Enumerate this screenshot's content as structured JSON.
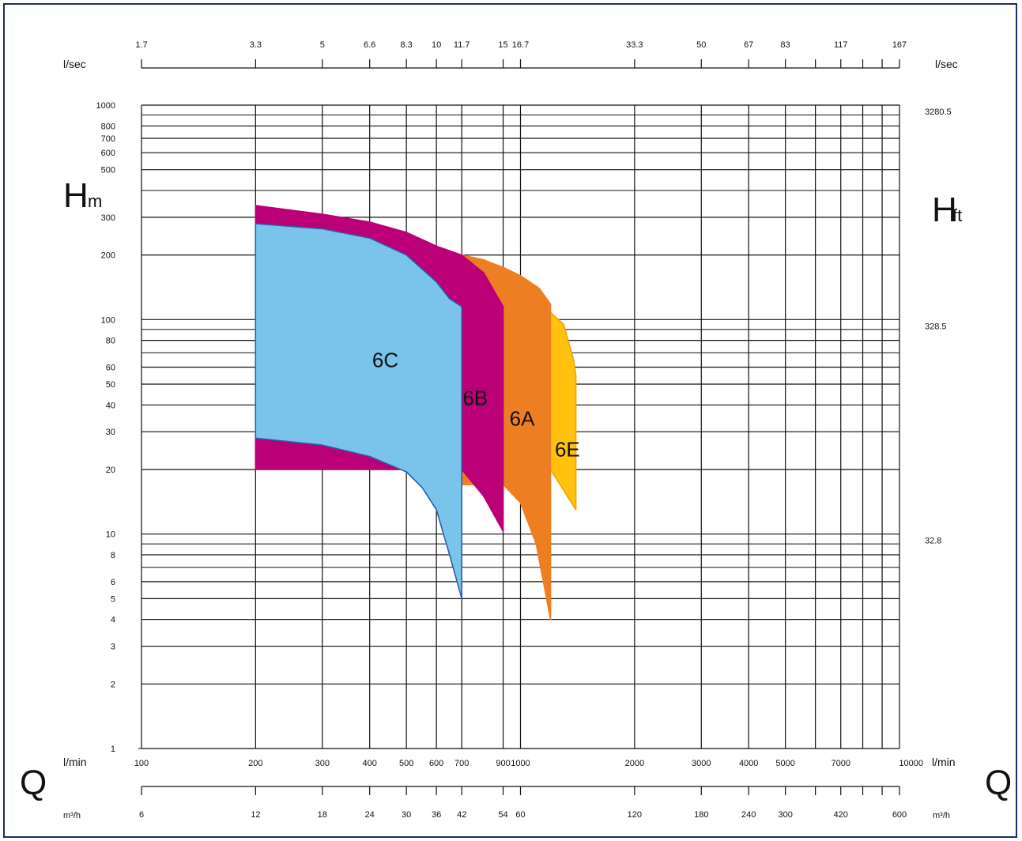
{
  "chart_data": {
    "type": "area",
    "x_scale": "log",
    "y_scale": "log",
    "xlim": [
      100,
      10000
    ],
    "ylim": [
      1,
      1000
    ],
    "grid": true,
    "x_tick_labels": [
      "100",
      "200",
      "300",
      "400",
      "500",
      "600",
      "700",
      "900",
      "1000",
      "2000",
      "3000",
      "4000",
      "5000",
      "7000",
      "10000"
    ],
    "y_tick_labels": [
      "1",
      "2",
      "3",
      "4",
      "5",
      "6",
      "8",
      "10",
      "20",
      "30",
      "40",
      "50",
      "60",
      "80",
      "100",
      "200",
      "300",
      "500",
      "600",
      "700",
      "800",
      "1000"
    ],
    "top_axis": {
      "unit": "l/sec",
      "ticks": [
        {
          "at": 100,
          "label": "1.7"
        },
        {
          "at": 200,
          "label": "3.3"
        },
        {
          "at": 300,
          "label": "5"
        },
        {
          "at": 400,
          "label": "6.6"
        },
        {
          "at": 500,
          "label": "8.3"
        },
        {
          "at": 600,
          "label": "10"
        },
        {
          "at": 700,
          "label": "11.7"
        },
        {
          "at": 900,
          "label": "15"
        },
        {
          "at": 1000,
          "label": "16.7"
        },
        {
          "at": 2000,
          "label": "33.3"
        },
        {
          "at": 3000,
          "label": "50"
        },
        {
          "at": 4000,
          "label": "67"
        },
        {
          "at": 5000,
          "label": "83"
        },
        {
          "at": 6000,
          "label": ""
        },
        {
          "at": 7000,
          "label": "117"
        },
        {
          "at": 8000,
          "label": ""
        },
        {
          "at": 9000,
          "label": ""
        },
        {
          "at": 10000,
          "label": "167"
        }
      ]
    },
    "bottom_axis2": {
      "unit": "m3/h",
      "ticks": [
        {
          "at": 100,
          "label": "6"
        },
        {
          "at": 200,
          "label": "12"
        },
        {
          "at": 300,
          "label": "18"
        },
        {
          "at": 400,
          "label": "24"
        },
        {
          "at": 500,
          "label": "30"
        },
        {
          "at": 600,
          "label": "36"
        },
        {
          "at": 700,
          "label": "42"
        },
        {
          "at": 900,
          "label": "54"
        },
        {
          "at": 1000,
          "label": "60"
        },
        {
          "at": 2000,
          "label": "120"
        },
        {
          "at": 3000,
          "label": "180"
        },
        {
          "at": 4000,
          "label": "240"
        },
        {
          "at": 5000,
          "label": "300"
        },
        {
          "at": 6000,
          "label": ""
        },
        {
          "at": 7000,
          "label": "420"
        },
        {
          "at": 8000,
          "label": ""
        },
        {
          "at": 9000,
          "label": ""
        },
        {
          "at": 10000,
          "label": "600"
        }
      ]
    },
    "right_axis": {
      "ticks": [
        {
          "at": 1000,
          "label": "3280.5"
        },
        {
          "at": 100,
          "label": "328.5"
        },
        {
          "at": 10,
          "label": "32.8"
        }
      ]
    },
    "series": [
      {
        "name": "6C",
        "color": "#7ac3ea",
        "edge": "#2b5fad",
        "upper": [
          [
            200,
            280
          ],
          [
            300,
            265
          ],
          [
            400,
            240
          ],
          [
            500,
            200
          ],
          [
            600,
            150
          ],
          [
            650,
            125
          ],
          [
            700,
            115
          ]
        ],
        "lower": [
          [
            200,
            28
          ],
          [
            300,
            26
          ],
          [
            400,
            23
          ],
          [
            500,
            19.5
          ],
          [
            550,
            16.5
          ],
          [
            600,
            13
          ],
          [
            650,
            8
          ],
          [
            700,
            5
          ]
        ]
      },
      {
        "name": "6B",
        "color": "#bb0077",
        "edge": "#bb0077",
        "upper": [
          [
            200,
            340
          ],
          [
            300,
            310
          ],
          [
            400,
            285
          ],
          [
            500,
            255
          ],
          [
            600,
            220
          ],
          [
            700,
            200
          ],
          [
            800,
            165
          ],
          [
            900,
            115
          ]
        ],
        "lower": [
          [
            700,
            20
          ],
          [
            800,
            15
          ],
          [
            900,
            10.3
          ]
        ]
      },
      {
        "name": "6A",
        "color": "#ee7e22",
        "edge": "#ee7e22",
        "upper": [
          [
            700,
            200
          ],
          [
            800,
            190
          ],
          [
            900,
            175
          ],
          [
            1000,
            160
          ],
          [
            1120,
            140
          ],
          [
            1200,
            118
          ]
        ],
        "lower": [
          [
            900,
            17
          ],
          [
            1000,
            14
          ],
          [
            1100,
            9
          ],
          [
            1200,
            4
          ]
        ]
      },
      {
        "name": "6E",
        "color": "#ffc20e",
        "edge": "#f4a300",
        "upper": [
          [
            1200,
            108
          ],
          [
            1300,
            95
          ],
          [
            1380,
            65
          ],
          [
            1400,
            55
          ]
        ],
        "lower": [
          [
            1200,
            20
          ],
          [
            1300,
            16
          ],
          [
            1380,
            13.5
          ],
          [
            1400,
            13
          ]
        ]
      }
    ]
  },
  "labels": {
    "x_unit_top_left": "l/sec",
    "x_unit_top_right": "l/sec",
    "x_unit_bottom": "l/min",
    "x_unit_bottom_right": "l/min",
    "m3h_left": "m³/h",
    "m3h_right": "m³/h",
    "H_left_main": "H",
    "H_left_sub": "m",
    "H_right_main": "H",
    "H_right_sub": "ft",
    "Q_left": "Q",
    "Q_right": "Q"
  }
}
